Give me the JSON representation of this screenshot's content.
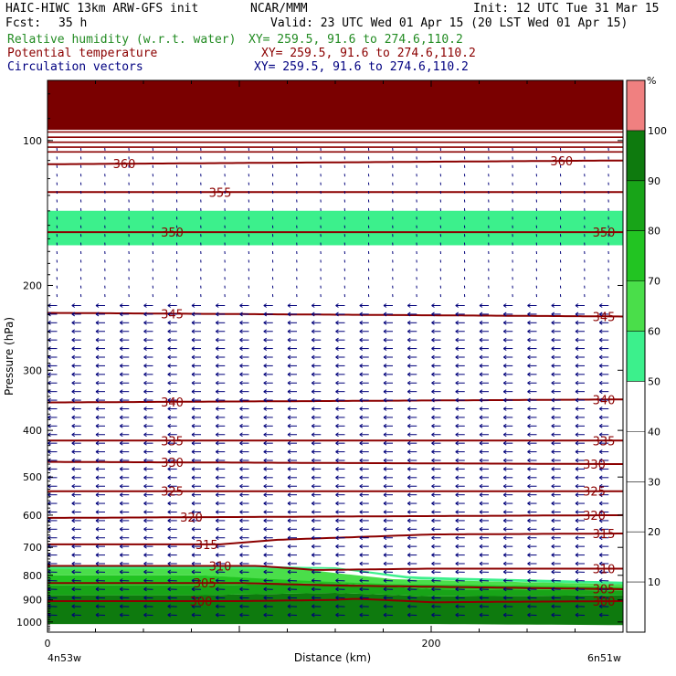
{
  "header": {
    "model": "HAIC-HIWC 13km ARW-GFS init",
    "org": "NCAR/MMM",
    "init": "Init: 12 UTC Tue 31 Mar 15",
    "fcst_label": "Fcst:",
    "fcst_value": "35 h",
    "valid": "Valid: 23 UTC Wed 01 Apr 15 (20 LST Wed 01 Apr 15)",
    "fields": [
      {
        "label": "Relative humidity (w.r.t. water)",
        "xy": "XY= 259.5, 91.6 to 274.6,110.2",
        "color": "#228b22"
      },
      {
        "label": "Potential temperature",
        "xy": "XY= 259.5, 91.6 to 274.6,110.2",
        "color": "#8b0000"
      },
      {
        "label": "Circulation vectors",
        "xy": "XY= 259.5, 91.6 to 274.6,110.2",
        "color": "#000080"
      }
    ]
  },
  "chart_data": {
    "type": "cross-section",
    "ylabel": "Pressure (hPa)",
    "xlabel": "Distance (km)",
    "y_scale": "log",
    "ylim": [
      1050,
      75
    ],
    "xlim": [
      0,
      300
    ],
    "y_ticks": [
      100,
      200,
      300,
      400,
      500,
      600,
      700,
      800,
      900,
      1000
    ],
    "x_ticks": [
      0,
      200
    ],
    "x_tick_labels": [
      "0",
      "200"
    ],
    "left_endpoint": "4n53w",
    "right_endpoint": "6n51w",
    "colorbar": {
      "unit": "%",
      "ticks": [
        10,
        20,
        30,
        40,
        50,
        60,
        70,
        80,
        90,
        100
      ],
      "levels": [
        {
          "from": 0,
          "to": 50,
          "color": "#ffffff"
        },
        {
          "from": 50,
          "to": 60,
          "color": "#3cf08c"
        },
        {
          "from": 60,
          "to": 70,
          "color": "#4ade4a"
        },
        {
          "from": 70,
          "to": 80,
          "color": "#22c422"
        },
        {
          "from": 80,
          "to": 90,
          "color": "#18a418"
        },
        {
          "from": 90,
          "to": 100,
          "color": "#0e7a0e"
        },
        {
          "from": 100,
          "to": 110,
          "color": "#f08080"
        }
      ]
    },
    "rh_bands": [
      {
        "level": "100+",
        "color": "#f08080",
        "x": [
          153,
          170
        ],
        "top": [
          920,
          915
        ],
        "bottom": [
          930,
          935
        ]
      },
      {
        "level": "90+",
        "color": "#0e7a0e",
        "x": [
          0,
          80,
          150,
          200,
          300
        ],
        "top": [
          880,
          880,
          870,
          885,
          880
        ],
        "bottom": [
          1010,
          1010,
          1010,
          1010,
          1015
        ]
      },
      {
        "level": "80+",
        "color": "#18a418",
        "x": [
          0,
          80,
          150,
          200,
          300
        ],
        "top": [
          840,
          840,
          830,
          855,
          860
        ],
        "bottom": [
          880,
          880,
          870,
          885,
          880
        ]
      },
      {
        "level": "70+",
        "color": "#22c422",
        "x": [
          0,
          80,
          150,
          200,
          300
        ],
        "top": [
          800,
          800,
          820,
          835,
          845
        ],
        "bottom": [
          840,
          840,
          830,
          855,
          860
        ]
      },
      {
        "level": "60+",
        "color": "#4ade4a",
        "x": [
          0,
          80,
          130,
          180,
          300
        ],
        "top": [
          775,
          775,
          775,
          815,
          835
        ],
        "bottom": [
          800,
          800,
          820,
          835,
          845
        ]
      },
      {
        "level": "50+",
        "color": "#3cf08c",
        "x": [
          0,
          100,
          150,
          190,
          300
        ],
        "top": [
          765,
          765,
          770,
          805,
          825
        ],
        "bottom": [
          775,
          775,
          775,
          815,
          835
        ]
      },
      {
        "level": "upper-50+",
        "color": "#3cf08c",
        "x": [
          0,
          300
        ],
        "top": [
          140,
          140
        ],
        "bottom": [
          165,
          165
        ]
      }
    ],
    "theta_contours": [
      {
        "value": "360",
        "x": [
          0,
          300
        ],
        "p": [
          112,
          110
        ],
        "labels": [
          {
            "x": 40
          },
          {
            "x": 268
          }
        ]
      },
      {
        "value": "355",
        "x": [
          0,
          300
        ],
        "p": [
          128,
          128
        ],
        "labels": [
          {
            "x": 90
          }
        ]
      },
      {
        "value": "350",
        "x": [
          0,
          300
        ],
        "p": [
          155,
          155
        ],
        "labels": [
          {
            "x": 65
          },
          {
            "x": 290
          }
        ]
      },
      {
        "value": "345",
        "x": [
          0,
          300
        ],
        "p": [
          228,
          232
        ],
        "labels": [
          {
            "x": 65
          },
          {
            "x": 290
          }
        ]
      },
      {
        "value": "340",
        "x": [
          0,
          300
        ],
        "p": [
          350,
          345
        ],
        "labels": [
          {
            "x": 65
          },
          {
            "x": 290
          }
        ]
      },
      {
        "value": "335",
        "x": [
          0,
          300
        ],
        "p": [
          420,
          420
        ],
        "labels": [
          {
            "x": 65
          },
          {
            "x": 290
          }
        ]
      },
      {
        "value": "330",
        "x": [
          0,
          300
        ],
        "p": [
          465,
          470
        ],
        "labels": [
          {
            "x": 65
          },
          {
            "x": 285
          }
        ]
      },
      {
        "value": "325",
        "x": [
          0,
          300
        ],
        "p": [
          535,
          535
        ],
        "labels": [
          {
            "x": 65
          },
          {
            "x": 285
          }
        ]
      },
      {
        "value": "320",
        "x": [
          0,
          300
        ],
        "p": [
          608,
          600
        ],
        "labels": [
          {
            "x": 75
          },
          {
            "x": 285
          }
        ]
      },
      {
        "value": "315",
        "x": [
          0,
          90,
          120,
          200,
          300
        ],
        "p": [
          690,
          690,
          675,
          658,
          655
        ],
        "labels": [
          {
            "x": 83
          },
          {
            "x": 290
          }
        ]
      },
      {
        "value": "310",
        "x": [
          0,
          110,
          140,
          200,
          300
        ],
        "p": [
          765,
          765,
          780,
          775,
          775
        ],
        "labels": [
          {
            "x": 90
          },
          {
            "x": 290
          }
        ]
      },
      {
        "value": "305",
        "x": [
          0,
          100,
          150,
          200,
          300
        ],
        "p": [
          830,
          830,
          840,
          845,
          855
        ],
        "labels": [
          {
            "x": 82
          },
          {
            "x": 290
          }
        ]
      },
      {
        "value": "300",
        "x": [
          0,
          100,
          150,
          160,
          175,
          200,
          300
        ],
        "p": [
          905,
          905,
          900,
          895,
          900,
          910,
          905
        ],
        "labels": [
          {
            "x": 80
          },
          {
            "x": 290
          }
        ]
      }
    ],
    "wind_vectors": {
      "note": "circulation vectors, mostly easterly flow (pointing left)",
      "regimes": [
        {
          "p_range": [
            80,
            220
          ],
          "u": -0.1,
          "w": 1.0
        },
        {
          "p_range": [
            220,
            760
          ],
          "u": -1.0,
          "w": 0.0
        },
        {
          "p_range": [
            760,
            1010
          ],
          "u": -1.0,
          "w": 0.15
        }
      ]
    }
  }
}
